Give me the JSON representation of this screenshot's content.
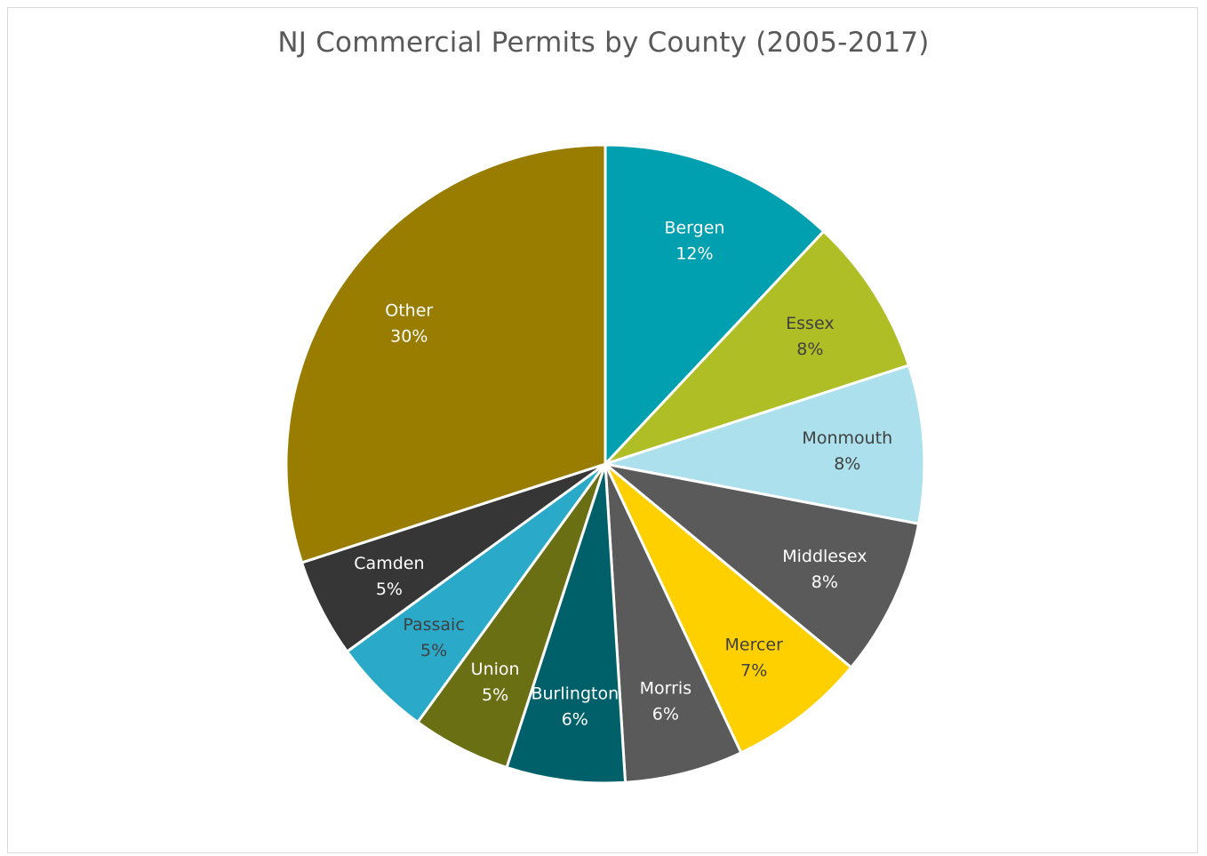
{
  "chart_data": {
    "type": "pie",
    "title": "NJ Commercial Permits by County (2005-2017)",
    "label_format": "category-and-percent",
    "start_angle_deg": 0,
    "direction": "clockwise",
    "slices": [
      {
        "name": "Bergen",
        "value": 12,
        "label": "12%",
        "color": "#00A0B0",
        "label_color": "#ffffff"
      },
      {
        "name": "Essex",
        "value": 8,
        "label": "8%",
        "color": "#AFBE24",
        "label_color": "#404040"
      },
      {
        "name": "Monmouth",
        "value": 8,
        "label": "8%",
        "color": "#ABE0EC",
        "label_color": "#404040"
      },
      {
        "name": "Middlesex",
        "value": 8,
        "label": "8%",
        "color": "#5A5A5A",
        "label_color": "#ffffff"
      },
      {
        "name": "Mercer",
        "value": 7,
        "label": "7%",
        "color": "#FFD000",
        "label_color": "#404040"
      },
      {
        "name": "Morris",
        "value": 6,
        "label": "6%",
        "color": "#5A5A5A",
        "label_color": "#ffffff"
      },
      {
        "name": "Burlington",
        "value": 6,
        "label": "6%",
        "color": "#00606A",
        "label_color": "#ffffff"
      },
      {
        "name": "Union",
        "value": 5,
        "label": "5%",
        "color": "#6A6F14",
        "label_color": "#ffffff"
      },
      {
        "name": "Passaic",
        "value": 5,
        "label": "5%",
        "color": "#2AAAC8",
        "label_color": "#404040"
      },
      {
        "name": "Camden",
        "value": 5,
        "label": "5%",
        "color": "#363636",
        "label_color": "#ffffff"
      },
      {
        "name": "Other",
        "value": 30,
        "label": "30%",
        "color": "#987D00",
        "label_color": "#ffffff"
      }
    ]
  }
}
